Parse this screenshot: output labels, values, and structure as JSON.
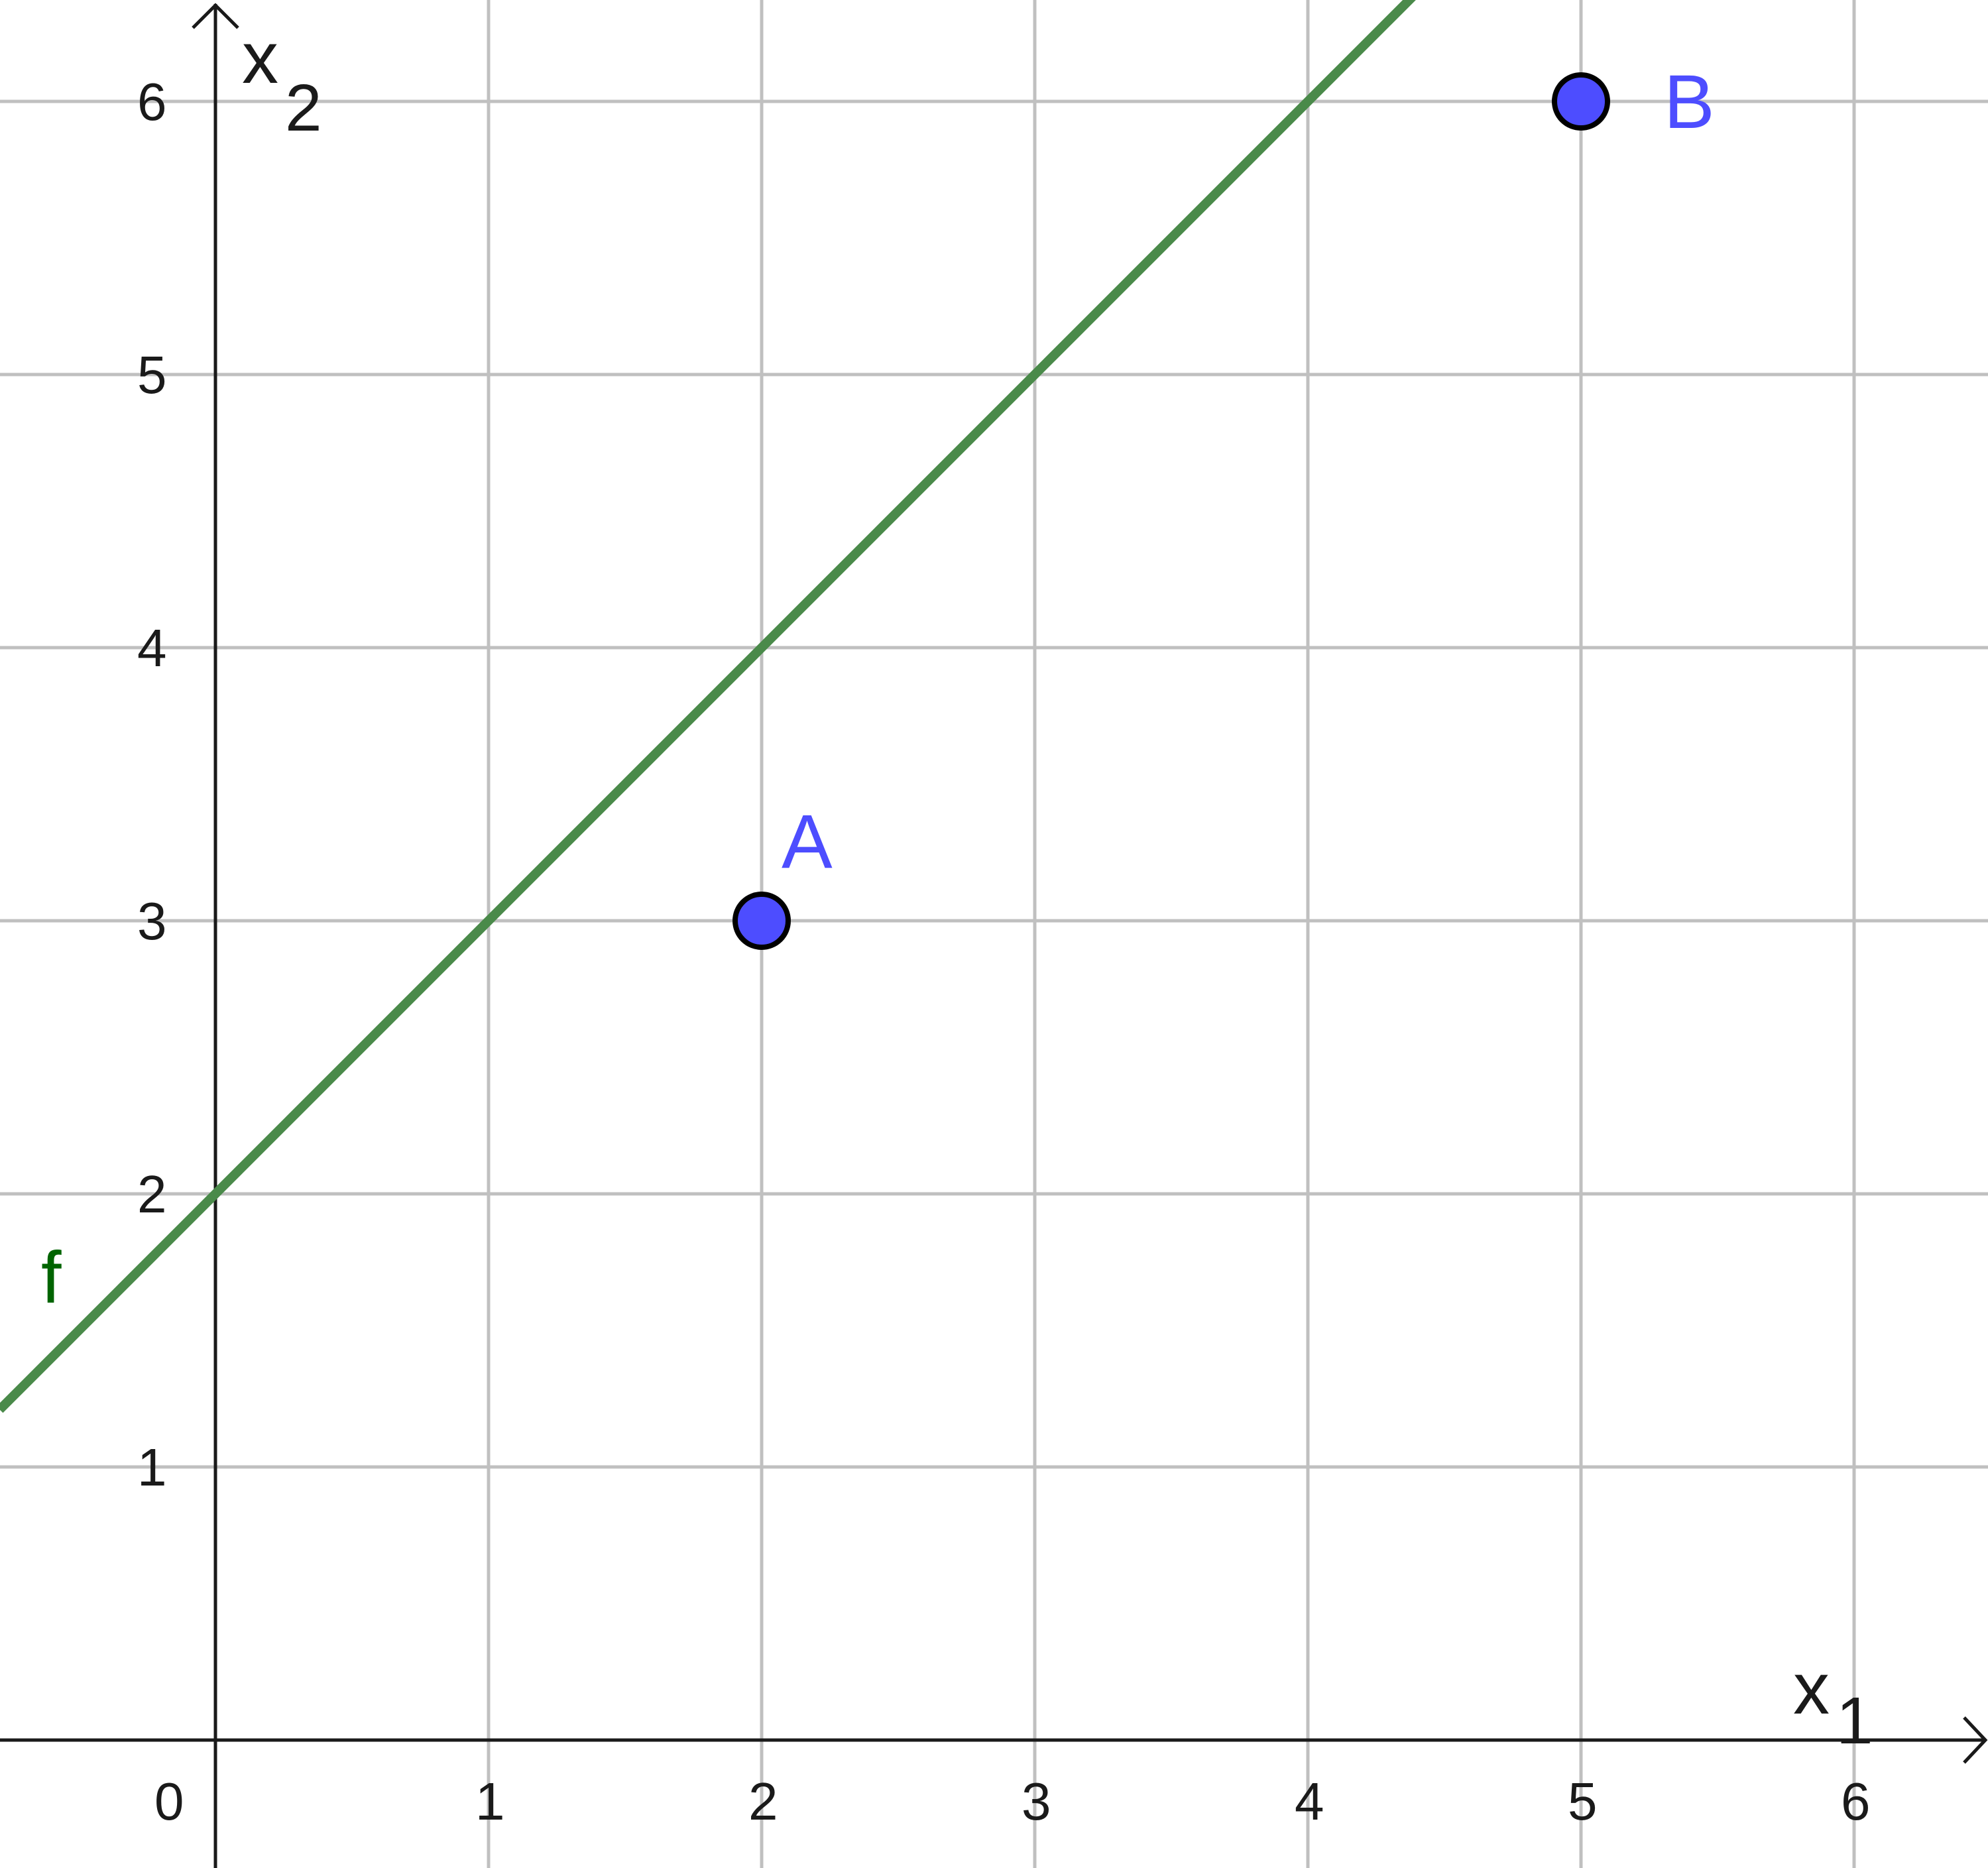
{
  "chart_data": {
    "type": "line",
    "title": "",
    "xlabel": "x",
    "xlabel_sub": "1",
    "ylabel": "x",
    "ylabel_sub": "2",
    "xlim": [
      -0.79,
      6.5
    ],
    "ylim": [
      -0.47,
      6.38
    ],
    "grid": true,
    "x_ticks": [
      "0",
      "1",
      "2",
      "3",
      "4",
      "5",
      "6"
    ],
    "y_ticks": [
      "1",
      "2",
      "3",
      "4",
      "5",
      "6"
    ],
    "lines": [
      {
        "name": "f",
        "slope": 1,
        "intercept": 2,
        "color": "#4a8a4a",
        "label_color": "#006400"
      }
    ],
    "points": [
      {
        "name": "A",
        "x": 2,
        "y": 3,
        "color": "#4d4dff"
      },
      {
        "name": "B",
        "x": 5,
        "y": 6,
        "color": "#4d4dff"
      }
    ],
    "colors": {
      "grid": "#c0c0c0",
      "axis": "#1a1a1a"
    }
  }
}
